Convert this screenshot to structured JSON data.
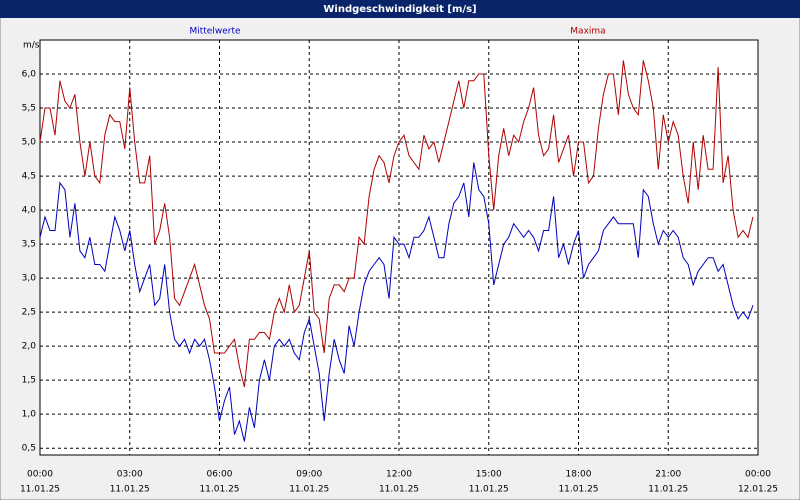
{
  "chart_data": {
    "type": "line",
    "title": "Windgeschwindigkeit [m/s]",
    "y_label": "m/s",
    "x": [
      0,
      10,
      20,
      30,
      40,
      50,
      60,
      70,
      80,
      90,
      100,
      110,
      120,
      130,
      140,
      150,
      160,
      170,
      180,
      190,
      200,
      210,
      220,
      230,
      240,
      250,
      260,
      270,
      280,
      290,
      300,
      310,
      320,
      330,
      340,
      350,
      360,
      370,
      380,
      390,
      400,
      410,
      420,
      430,
      440,
      450,
      460,
      470,
      480,
      490,
      500,
      510,
      520,
      530,
      540,
      550,
      560,
      570,
      580,
      590,
      600,
      610,
      620,
      630,
      640,
      650,
      660,
      670,
      680,
      690,
      700,
      710,
      720,
      730,
      740,
      750,
      760,
      770,
      780,
      790,
      800,
      810,
      820,
      830,
      840,
      850,
      860,
      870,
      880,
      890,
      900,
      910,
      920,
      930,
      940,
      950,
      960,
      970,
      980,
      990,
      1000,
      1010,
      1020,
      1030,
      1040,
      1050,
      1060,
      1070,
      1080,
      1090,
      1100,
      1110,
      1120,
      1130,
      1140,
      1150,
      1160,
      1170,
      1180,
      1190,
      1200,
      1210,
      1220,
      1230,
      1240,
      1250,
      1260,
      1270,
      1280,
      1290,
      1300,
      1310,
      1320,
      1330,
      1340,
      1350,
      1360,
      1370,
      1380,
      1390,
      1400,
      1410,
      1420,
      1430
    ],
    "series": [
      {
        "name": "Mittelwerte",
        "color": "#0000c0",
        "values": [
          3.6,
          3.9,
          3.7,
          3.7,
          4.4,
          4.3,
          3.6,
          4.1,
          3.4,
          3.3,
          3.6,
          3.2,
          3.2,
          3.1,
          3.5,
          3.9,
          3.7,
          3.4,
          3.7,
          3.2,
          2.8,
          3.0,
          3.2,
          2.6,
          2.7,
          3.2,
          2.5,
          2.1,
          2.0,
          2.1,
          1.9,
          2.1,
          2.0,
          2.1,
          1.8,
          1.4,
          0.9,
          1.2,
          1.4,
          0.7,
          0.9,
          0.6,
          1.1,
          0.8,
          1.5,
          1.8,
          1.5,
          2.0,
          2.1,
          2.0,
          2.1,
          1.9,
          1.8,
          2.2,
          2.4,
          2.0,
          1.6,
          0.9,
          1.6,
          2.1,
          1.8,
          1.6,
          2.3,
          2.0,
          2.5,
          2.9,
          3.1,
          3.2,
          3.3,
          3.2,
          2.7,
          3.6,
          3.5,
          3.5,
          3.3,
          3.6,
          3.6,
          3.7,
          3.9,
          3.6,
          3.3,
          3.3,
          3.8,
          4.1,
          4.2,
          4.4,
          3.9,
          4.7,
          4.3,
          4.2,
          3.8,
          2.9,
          3.2,
          3.5,
          3.6,
          3.8,
          3.7,
          3.6,
          3.7,
          3.6,
          3.4,
          3.7,
          3.7,
          4.2,
          3.3,
          3.5,
          3.2,
          3.5,
          3.7,
          3.0,
          3.2,
          3.3,
          3.4,
          3.7,
          3.8,
          3.9,
          3.8,
          3.8,
          3.8,
          3.8,
          3.3,
          4.3,
          4.2,
          3.8,
          3.5,
          3.7,
          3.6,
          3.7,
          3.6,
          3.3,
          3.2,
          2.9,
          3.1,
          3.2,
          3.3,
          3.3,
          3.1,
          3.2,
          2.9,
          2.6,
          2.4,
          2.5,
          2.4,
          2.6
        ]
      },
      {
        "name": "Maxima",
        "color": "#b00000",
        "values": [
          5.0,
          5.5,
          5.5,
          5.1,
          5.9,
          5.6,
          5.5,
          5.7,
          5.0,
          4.5,
          5.0,
          4.5,
          4.4,
          5.1,
          5.4,
          5.3,
          5.3,
          4.9,
          5.8,
          5.0,
          4.4,
          4.4,
          4.8,
          3.5,
          3.7,
          4.1,
          3.6,
          2.7,
          2.6,
          2.8,
          3.0,
          3.2,
          2.9,
          2.6,
          2.4,
          1.9,
          1.9,
          1.9,
          2.0,
          2.1,
          1.7,
          1.4,
          2.1,
          2.1,
          2.2,
          2.2,
          2.1,
          2.5,
          2.7,
          2.5,
          2.9,
          2.5,
          2.6,
          3.0,
          3.4,
          2.5,
          2.4,
          1.9,
          2.7,
          2.9,
          2.9,
          2.8,
          3.0,
          3.0,
          3.6,
          3.5,
          4.2,
          4.6,
          4.8,
          4.7,
          4.4,
          4.8,
          5.0,
          5.1,
          4.8,
          4.7,
          4.6,
          5.1,
          4.9,
          5.0,
          4.7,
          5.0,
          5.3,
          5.6,
          5.9,
          5.5,
          5.9,
          5.9,
          6.0,
          6.0,
          4.8,
          4.0,
          4.8,
          5.2,
          4.8,
          5.1,
          5.0,
          5.3,
          5.5,
          5.8,
          5.1,
          4.8,
          4.9,
          5.4,
          4.7,
          4.9,
          5.1,
          4.5,
          5.0,
          5.0,
          4.4,
          4.5,
          5.2,
          5.7,
          6.0,
          6.0,
          5.4,
          6.2,
          5.7,
          5.5,
          5.4,
          6.2,
          5.9,
          5.5,
          4.6,
          5.4,
          5.0,
          5.3,
          5.1,
          4.5,
          4.1,
          5.0,
          4.3,
          5.1,
          4.6,
          4.6,
          6.1,
          4.4,
          4.8,
          4.0,
          3.6,
          3.7,
          3.6,
          3.9
        ]
      }
    ],
    "xlim": [
      0,
      1440
    ],
    "xticks": [
      {
        "value": 0,
        "label": "00:00"
      },
      {
        "value": 180,
        "label": "03:00"
      },
      {
        "value": 360,
        "label": "06:00"
      },
      {
        "value": 540,
        "label": "09:00"
      },
      {
        "value": 720,
        "label": "12:00"
      },
      {
        "value": 900,
        "label": "15:00"
      },
      {
        "value": 1080,
        "label": "18:00"
      },
      {
        "value": 1260,
        "label": "21:00"
      },
      {
        "value": 1440,
        "label": "00:00"
      }
    ],
    "xtick_dates": [
      "11.01.25",
      "11.01.25",
      "11.01.25",
      "11.01.25",
      "11.01.25",
      "11.01.25",
      "11.01.25",
      "11.01.25",
      "12.01.25"
    ],
    "ylim": [
      0.4,
      6.5
    ],
    "yticks": [
      {
        "value": 0.5,
        "label": "0,5"
      },
      {
        "value": 1,
        "label": "1,0"
      },
      {
        "value": 1.5,
        "label": "1,5"
      },
      {
        "value": 2,
        "label": "2,0"
      },
      {
        "value": 2.5,
        "label": "2,5"
      },
      {
        "value": 3,
        "label": "3,0"
      },
      {
        "value": 3.5,
        "label": "3,5"
      },
      {
        "value": 4,
        "label": "4,0"
      },
      {
        "value": 4.5,
        "label": "4,5"
      },
      {
        "value": 5,
        "label": "5,0"
      },
      {
        "value": 5.5,
        "label": "5,5"
      },
      {
        "value": 6,
        "label": "6,0"
      }
    ],
    "grid": true
  }
}
